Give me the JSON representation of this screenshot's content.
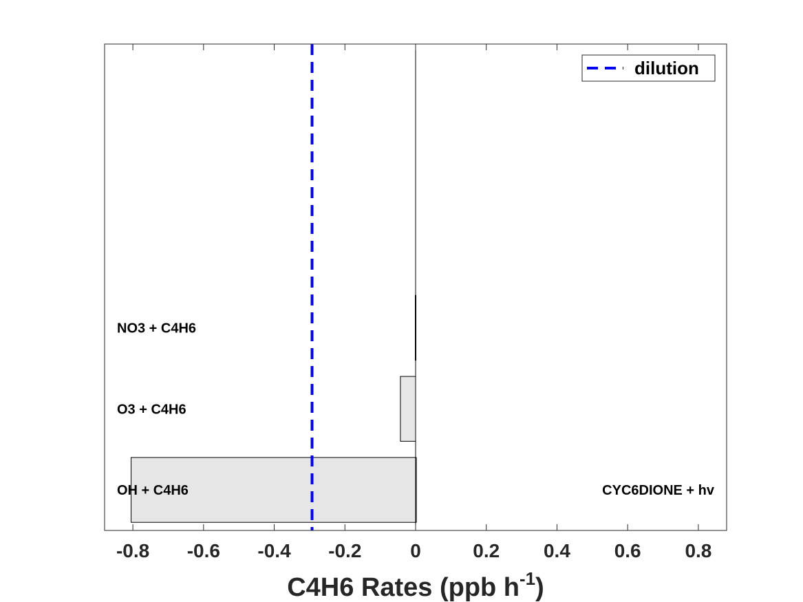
{
  "chart_data": {
    "type": "bar",
    "orientation": "horizontal",
    "xlabel_main": "C4H6 Rates (ppb h",
    "xlabel_sup": "-1",
    "xlabel_close": ")",
    "xlim": [
      -0.88,
      0.88
    ],
    "ylim": [
      0.5,
      6.5
    ],
    "xticks": [
      -0.8,
      -0.6,
      -0.4,
      -0.2,
      0,
      0.2,
      0.4,
      0.6,
      0.8
    ],
    "xtick_labels": [
      "-0.8",
      "-0.6",
      "-0.4",
      "-0.2",
      "0",
      "0.2",
      "0.4",
      "0.6",
      "0.8"
    ],
    "grid": false,
    "legend_position": "top-right",
    "negative_bars": [
      {
        "label": "OH + C4H6",
        "value": -0.805
      },
      {
        "label": "O3 + C4H6",
        "value": -0.043
      },
      {
        "label": "NO3 + C4H6",
        "value": -0.001
      }
    ],
    "positive_bars": [
      {
        "label": "CYC6DIONE + hv",
        "value": 0.001
      }
    ],
    "dilution": {
      "name": "dilution",
      "value": -0.293,
      "color": "#0000ff"
    },
    "bar_fill": "#e6e6e6",
    "bar_edge": "#000000"
  }
}
